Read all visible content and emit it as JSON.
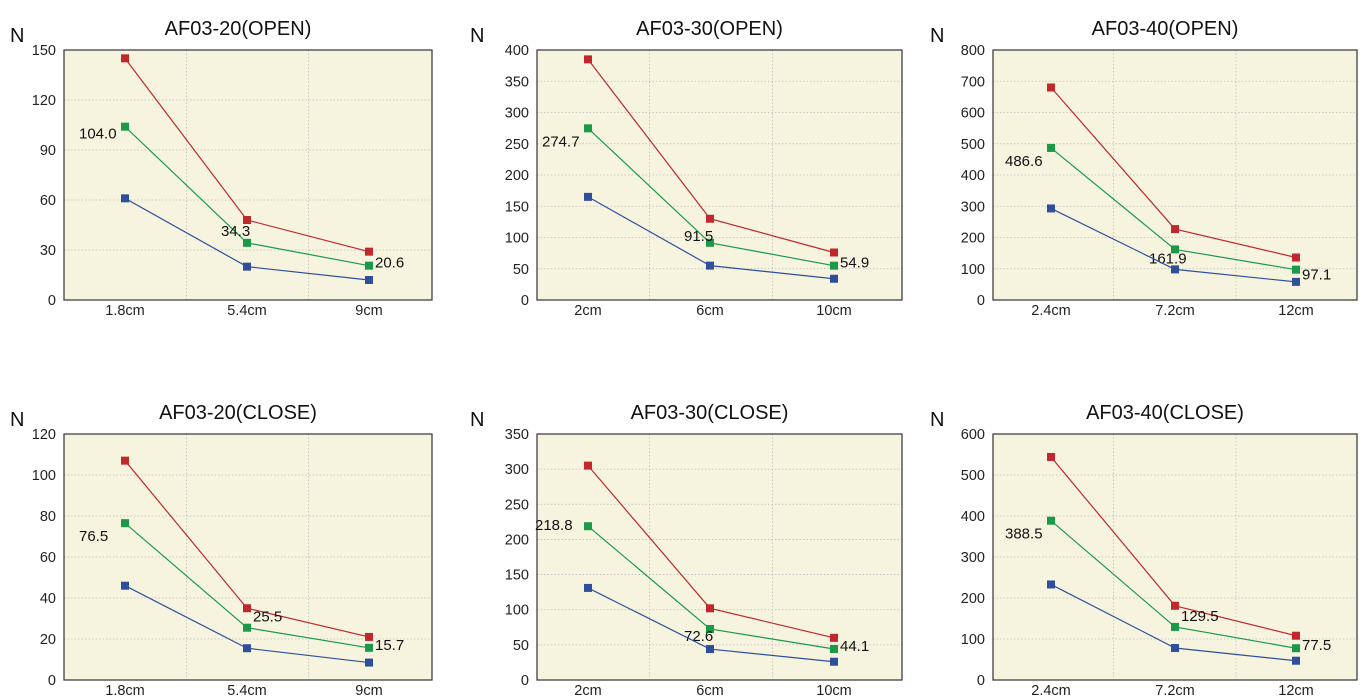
{
  "colors": {
    "plot_bg": "#f6f4df",
    "grid": "#bdbdbd",
    "axis": "#333333",
    "series_top": "#c0282d",
    "series_mid": "#1a9a48",
    "series_low": "#2f4f9c"
  },
  "chart_data": [
    {
      "type": "line",
      "title": "AF03-20(OPEN)",
      "ylabel": "N",
      "categories": [
        "1.8cm",
        "5.4cm",
        "9cm"
      ],
      "ylim": [
        0,
        150
      ],
      "yticks": [
        0,
        30,
        60,
        90,
        120,
        150
      ],
      "grid": true,
      "series": [
        {
          "values": [
            145,
            48,
            29
          ]
        },
        {
          "values": [
            104.0,
            34.3,
            20.6
          ],
          "labels": [
            "104.0",
            "34.3",
            "20.6"
          ]
        },
        {
          "values": [
            61,
            20,
            12
          ]
        }
      ]
    },
    {
      "type": "line",
      "title": "AF03-30(OPEN)",
      "ylabel": "N",
      "categories": [
        "2cm",
        "6cm",
        "10cm"
      ],
      "ylim": [
        0,
        400
      ],
      "yticks": [
        0,
        50,
        100,
        150,
        200,
        250,
        300,
        350,
        400
      ],
      "grid": true,
      "series": [
        {
          "values": [
            385,
            130,
            76
          ]
        },
        {
          "values": [
            274.7,
            91.5,
            54.9
          ],
          "labels": [
            "274.7",
            "91.5",
            "54.9"
          ]
        },
        {
          "values": [
            165,
            55,
            34
          ]
        }
      ]
    },
    {
      "type": "line",
      "title": "AF03-40(OPEN)",
      "ylabel": "N",
      "categories": [
        "2.4cm",
        "7.2cm",
        "12cm"
      ],
      "ylim": [
        0,
        800
      ],
      "yticks": [
        0,
        100,
        200,
        300,
        400,
        500,
        600,
        700,
        800
      ],
      "grid": true,
      "series": [
        {
          "values": [
            680,
            227,
            136
          ]
        },
        {
          "values": [
            486.6,
            161.9,
            97.1
          ],
          "labels": [
            "486.6",
            "161.9",
            "97.1"
          ]
        },
        {
          "values": [
            293,
            98,
            58
          ]
        }
      ]
    },
    {
      "type": "line",
      "title": "AF03-20(CLOSE)",
      "ylabel": "N",
      "categories": [
        "1.8cm",
        "5.4cm",
        "9cm"
      ],
      "ylim": [
        0,
        120
      ],
      "yticks": [
        0,
        20,
        40,
        60,
        80,
        100,
        120
      ],
      "grid": true,
      "series": [
        {
          "values": [
            107,
            35,
            21
          ]
        },
        {
          "values": [
            76.5,
            25.5,
            15.7
          ],
          "labels": [
            "76.5",
            "25.5",
            "15.7"
          ]
        },
        {
          "values": [
            46,
            15.5,
            8.5
          ]
        }
      ]
    },
    {
      "type": "line",
      "title": "AF03-30(CLOSE)",
      "ylabel": "N",
      "categories": [
        "2cm",
        "6cm",
        "10cm"
      ],
      "ylim": [
        0,
        350
      ],
      "yticks": [
        0,
        50,
        100,
        150,
        200,
        250,
        300,
        350
      ],
      "grid": true,
      "series": [
        {
          "values": [
            305,
            102,
            60
          ]
        },
        {
          "values": [
            218.8,
            72.6,
            44.1
          ],
          "labels": [
            "218.8",
            "72.6",
            "44.1"
          ]
        },
        {
          "values": [
            131,
            44,
            26
          ]
        }
      ]
    },
    {
      "type": "line",
      "title": "AF03-40(CLOSE)",
      "ylabel": "N",
      "categories": [
        "2.4cm",
        "7.2cm",
        "12cm"
      ],
      "ylim": [
        0,
        600
      ],
      "yticks": [
        0,
        100,
        200,
        300,
        400,
        500,
        600
      ],
      "grid": true,
      "series": [
        {
          "values": [
            544,
            181,
            108
          ]
        },
        {
          "values": [
            388.5,
            129.5,
            77.5
          ],
          "labels": [
            "388.5",
            "129.5",
            "77.5"
          ]
        },
        {
          "values": [
            233,
            78,
            47
          ]
        }
      ]
    }
  ]
}
